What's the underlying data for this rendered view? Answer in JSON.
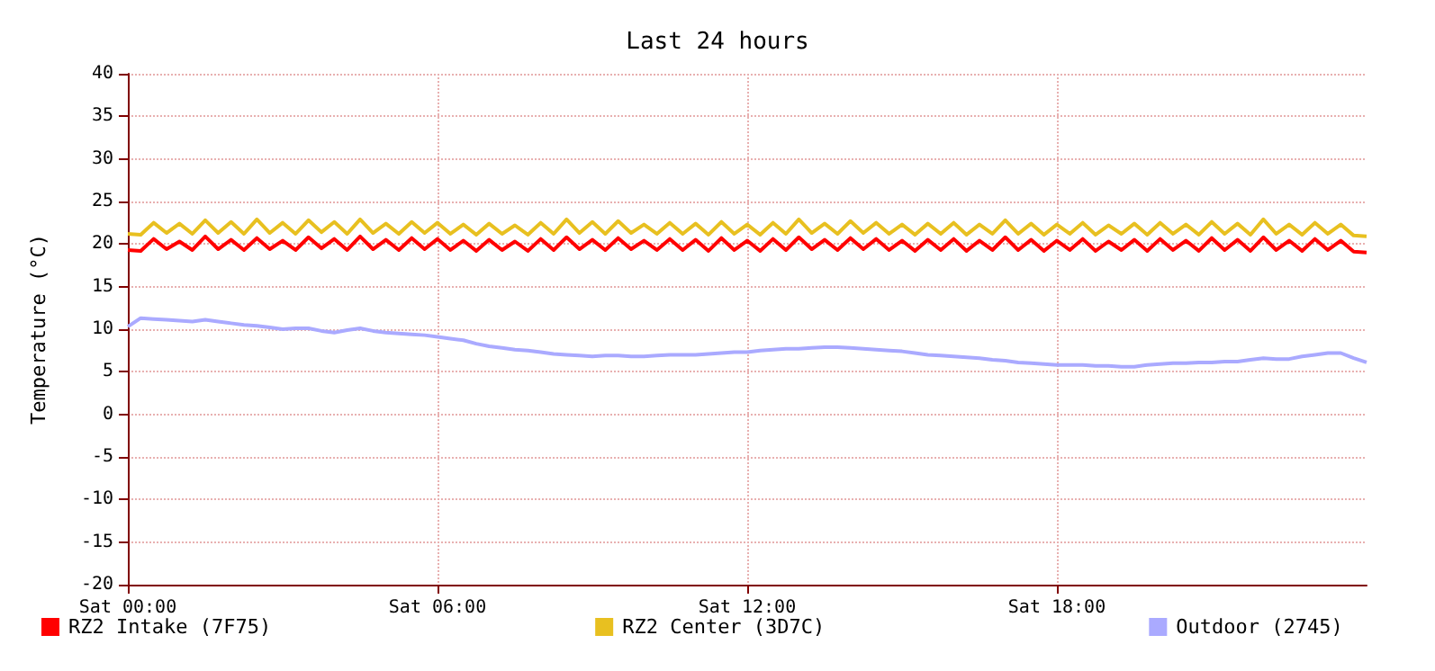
{
  "chart_data": {
    "type": "line",
    "title": "Last 24 hours",
    "ylabel": "Temperature (°C)",
    "categories": [
      "Sat 00:00",
      null,
      null,
      null,
      null,
      null,
      null,
      null,
      null,
      null,
      null,
      null,
      null,
      null,
      null,
      null,
      null,
      null,
      null,
      null,
      null,
      null,
      null,
      null,
      "Sat 06:00",
      null,
      null,
      null,
      null,
      null,
      null,
      null,
      null,
      null,
      null,
      null,
      null,
      null,
      null,
      null,
      null,
      null,
      null,
      null,
      null,
      null,
      null,
      null,
      "Sat 12:00",
      null,
      null,
      null,
      null,
      null,
      null,
      null,
      null,
      null,
      null,
      null,
      null,
      null,
      null,
      null,
      null,
      null,
      null,
      null,
      null,
      null,
      null,
      null,
      "Sat 18:00",
      null,
      null,
      null,
      null,
      null,
      null,
      null,
      null,
      null,
      null,
      null,
      null,
      null,
      null,
      null,
      null,
      null,
      null,
      null,
      null,
      null,
      null,
      null,
      null
    ],
    "series": [
      {
        "name": "RZ2 Intake (7F75)",
        "color": "#ff0000",
        "values": [
          19.3,
          19.2,
          20.6,
          19.4,
          20.3,
          19.3,
          20.9,
          19.4,
          20.5,
          19.3,
          20.7,
          19.4,
          20.4,
          19.3,
          20.8,
          19.5,
          20.6,
          19.3,
          20.9,
          19.4,
          20.5,
          19.3,
          20.7,
          19.4,
          20.6,
          19.3,
          20.4,
          19.2,
          20.5,
          19.3,
          20.3,
          19.2,
          20.6,
          19.3,
          20.8,
          19.4,
          20.5,
          19.3,
          20.7,
          19.4,
          20.4,
          19.3,
          20.6,
          19.3,
          20.5,
          19.2,
          20.7,
          19.3,
          20.4,
          19.2,
          20.6,
          19.3,
          20.8,
          19.4,
          20.5,
          19.3,
          20.7,
          19.4,
          20.6,
          19.3,
          20.4,
          19.2,
          20.5,
          19.3,
          20.6,
          19.2,
          20.4,
          19.3,
          20.8,
          19.3,
          20.5,
          19.2,
          20.4,
          19.3,
          20.6,
          19.2,
          20.3,
          19.3,
          20.5,
          19.2,
          20.6,
          19.3,
          20.4,
          19.2,
          20.7,
          19.3,
          20.5,
          19.2,
          20.8,
          19.3,
          20.4,
          19.2,
          20.6,
          19.3,
          20.4,
          19.1,
          19.0
        ]
      },
      {
        "name": "RZ2 Center (3D7C)",
        "color": "#e8c020",
        "values": [
          21.2,
          21.1,
          22.5,
          21.3,
          22.4,
          21.2,
          22.8,
          21.3,
          22.6,
          21.2,
          22.9,
          21.3,
          22.5,
          21.2,
          22.8,
          21.4,
          22.6,
          21.2,
          22.9,
          21.3,
          22.4,
          21.2,
          22.6,
          21.3,
          22.5,
          21.2,
          22.3,
          21.1,
          22.4,
          21.2,
          22.2,
          21.1,
          22.5,
          21.2,
          22.9,
          21.3,
          22.6,
          21.2,
          22.7,
          21.3,
          22.3,
          21.2,
          22.5,
          21.2,
          22.4,
          21.1,
          22.6,
          21.2,
          22.3,
          21.1,
          22.5,
          21.2,
          22.9,
          21.3,
          22.4,
          21.2,
          22.7,
          21.3,
          22.5,
          21.2,
          22.3,
          21.1,
          22.4,
          21.2,
          22.5,
          21.1,
          22.3,
          21.2,
          22.8,
          21.2,
          22.4,
          21.1,
          22.3,
          21.2,
          22.5,
          21.1,
          22.2,
          21.2,
          22.4,
          21.1,
          22.5,
          21.2,
          22.3,
          21.1,
          22.6,
          21.2,
          22.4,
          21.1,
          22.9,
          21.2,
          22.3,
          21.1,
          22.5,
          21.2,
          22.3,
          21.0,
          20.9
        ]
      },
      {
        "name": "Outdoor (2745)",
        "color": "#aaaaff",
        "values": [
          10.3,
          11.3,
          11.2,
          11.1,
          11,
          10.9,
          11.1,
          10.9,
          10.7,
          10.5,
          10.4,
          10.2,
          10,
          10.1,
          10.1,
          9.8,
          9.6,
          9.9,
          10.1,
          9.8,
          9.6,
          9.5,
          9.4,
          9.3,
          9.1,
          8.9,
          8.7,
          8.3,
          8,
          7.8,
          7.6,
          7.5,
          7.3,
          7.1,
          7,
          6.9,
          6.8,
          6.9,
          6.9,
          6.8,
          6.8,
          6.9,
          7,
          7,
          7,
          7.1,
          7.2,
          7.3,
          7.3,
          7.5,
          7.6,
          7.7,
          7.7,
          7.8,
          7.9,
          7.9,
          7.8,
          7.7,
          7.6,
          7.5,
          7.4,
          7.2,
          7,
          6.9,
          6.8,
          6.7,
          6.6,
          6.4,
          6.3,
          6.1,
          6,
          5.9,
          5.8,
          5.8,
          5.8,
          5.7,
          5.7,
          5.6,
          5.6,
          5.8,
          5.9,
          6,
          6,
          6.1,
          6.1,
          6.2,
          6.2,
          6.4,
          6.6,
          6.5,
          6.5,
          6.8,
          7,
          7.2,
          7.2,
          6.6,
          6.1
        ]
      }
    ],
    "ylim": [
      -20,
      40
    ],
    "yticks": [
      -20,
      -15,
      -10,
      -5,
      0,
      5,
      10,
      15,
      20,
      25,
      30,
      35,
      40
    ],
    "grid": true,
    "legend": "bottom",
    "marker": "none",
    "line_style": "solid"
  }
}
